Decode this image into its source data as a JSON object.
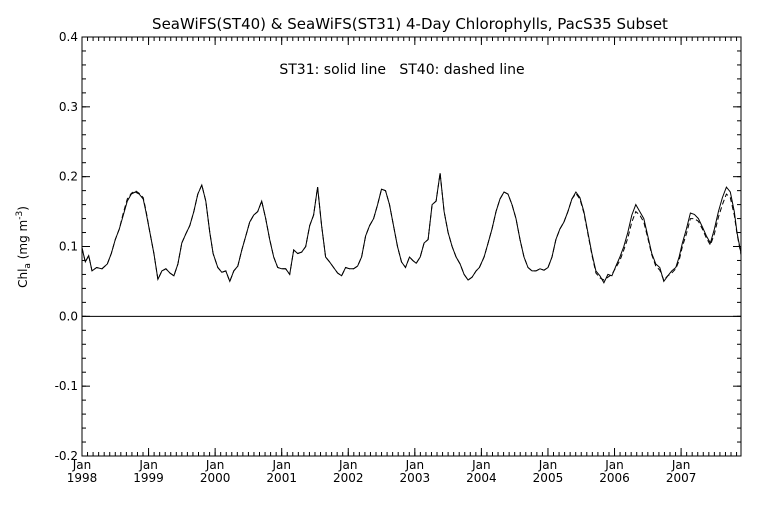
{
  "chart_data": {
    "type": "line",
    "title": "SeaWiFS(ST40) & SeaWiFS(ST31) 4-Day Chlorophylls, PacS35 Subset",
    "annotation": "ST31: solid line   ST40: dashed line",
    "ylabel": {
      "base": "Chl",
      "sub": "a",
      "units_open": " (mg m",
      "units_sup": "-3",
      "units_close": ")"
    },
    "xlim": [
      1998.0,
      2007.9
    ],
    "ylim": [
      -0.2,
      0.4
    ],
    "yticks": [
      -0.2,
      -0.1,
      0.0,
      0.1,
      0.2,
      0.3,
      0.4
    ],
    "ytick_labels": [
      "-0.2",
      "-0.1",
      "0.0",
      "0.1",
      "0.2",
      "0.3",
      "0.4"
    ],
    "xticks": [
      {
        "x": 1998,
        "month": "Jan",
        "year": "1998"
      },
      {
        "x": 1999,
        "month": "Jan",
        "year": "1999"
      },
      {
        "x": 2000,
        "month": "Jan",
        "year": "2000"
      },
      {
        "x": 2001,
        "month": "Jan",
        "year": "2001"
      },
      {
        "x": 2002,
        "month": "Jan",
        "year": "2002"
      },
      {
        "x": 2003,
        "month": "Jan",
        "year": "2003"
      },
      {
        "x": 2004,
        "month": "Jan",
        "year": "2004"
      },
      {
        "x": 2005,
        "month": "Jan",
        "year": "2005"
      },
      {
        "x": 2006,
        "month": "Jan",
        "year": "2006"
      },
      {
        "x": 2007,
        "month": "Jan",
        "year": "2007"
      }
    ],
    "reference_line": 0.0,
    "series": [
      {
        "name": "ST31",
        "style": "solid",
        "x": [
          1998.0,
          1998.05,
          1998.1,
          1998.15,
          1998.22,
          1998.3,
          1998.38,
          1998.44,
          1998.5,
          1998.56,
          1998.62,
          1998.68,
          1998.74,
          1998.8,
          1998.86,
          1998.92,
          1998.96,
          1999.02,
          1999.08,
          1999.14,
          1999.2,
          1999.26,
          1999.32,
          1999.38,
          1999.44,
          1999.5,
          1999.56,
          1999.62,
          1999.68,
          1999.74,
          1999.8,
          1999.86,
          1999.92,
          1999.97,
          2000.04,
          2000.1,
          2000.16,
          2000.22,
          2000.28,
          2000.34,
          2000.4,
          2000.46,
          2000.52,
          2000.58,
          2000.64,
          2000.7,
          2000.76,
          2000.82,
          2000.88,
          2000.94,
          2001.0,
          2001.06,
          2001.12,
          2001.18,
          2001.24,
          2001.3,
          2001.36,
          2001.42,
          2001.48,
          2001.54,
          2001.6,
          2001.66,
          2001.72,
          2001.78,
          2001.84,
          2001.9,
          2001.96,
          2002.02,
          2002.08,
          2002.14,
          2002.2,
          2002.26,
          2002.32,
          2002.38,
          2002.44,
          2002.5,
          2002.56,
          2002.62,
          2002.68,
          2002.74,
          2002.8,
          2002.86,
          2002.92,
          2002.97,
          2003.02,
          2003.08,
          2003.14,
          2003.2,
          2003.26,
          2003.32,
          2003.38,
          2003.44,
          2003.5,
          2003.56,
          2003.62,
          2003.68,
          2003.74,
          2003.8,
          2003.86,
          2003.92,
          2003.97,
          2004.04,
          2004.1,
          2004.16,
          2004.22,
          2004.28,
          2004.34,
          2004.4,
          2004.46,
          2004.52,
          2004.58,
          2004.64,
          2004.7,
          2004.76,
          2004.82,
          2004.88,
          2004.94,
          2005.0,
          2005.06,
          2005.12,
          2005.18,
          2005.24,
          2005.3,
          2005.36,
          2005.42,
          2005.48,
          2005.54,
          2005.6,
          2005.66,
          2005.72,
          2005.78,
          2005.84,
          2005.9,
          2005.96,
          2006.02,
          2006.08,
          2006.14,
          2006.2,
          2006.26,
          2006.32,
          2006.38,
          2006.44,
          2006.5,
          2006.56,
          2006.62,
          2006.68,
          2006.74,
          2006.8,
          2006.86,
          2006.92,
          2006.97,
          2007.02,
          2007.08,
          2007.14,
          2007.2,
          2007.26,
          2007.32,
          2007.38,
          2007.44,
          2007.5,
          2007.56,
          2007.62,
          2007.68,
          2007.74,
          2007.8,
          2007.84,
          2007.88,
          2007.9
        ],
        "y": [
          0.098,
          0.078,
          0.087,
          0.065,
          0.07,
          0.068,
          0.075,
          0.09,
          0.11,
          0.125,
          0.145,
          0.165,
          0.175,
          0.178,
          0.175,
          0.168,
          0.15,
          0.12,
          0.09,
          0.053,
          0.065,
          0.068,
          0.062,
          0.058,
          0.075,
          0.105,
          0.118,
          0.13,
          0.15,
          0.175,
          0.188,
          0.165,
          0.12,
          0.09,
          0.07,
          0.063,
          0.065,
          0.05,
          0.065,
          0.072,
          0.095,
          0.115,
          0.135,
          0.145,
          0.15,
          0.165,
          0.14,
          0.11,
          0.085,
          0.07,
          0.068,
          0.068,
          0.06,
          0.095,
          0.09,
          0.092,
          0.1,
          0.13,
          0.145,
          0.185,
          0.13,
          0.085,
          0.078,
          0.07,
          0.062,
          0.058,
          0.07,
          0.068,
          0.068,
          0.072,
          0.085,
          0.115,
          0.13,
          0.14,
          0.16,
          0.182,
          0.18,
          0.16,
          0.13,
          0.1,
          0.078,
          0.07,
          0.085,
          0.08,
          0.076,
          0.085,
          0.105,
          0.11,
          0.16,
          0.165,
          0.205,
          0.15,
          0.12,
          0.1,
          0.085,
          0.075,
          0.06,
          0.052,
          0.056,
          0.065,
          0.07,
          0.085,
          0.105,
          0.125,
          0.15,
          0.168,
          0.178,
          0.175,
          0.16,
          0.14,
          0.11,
          0.085,
          0.07,
          0.065,
          0.065,
          0.068,
          0.066,
          0.07,
          0.085,
          0.11,
          0.125,
          0.135,
          0.15,
          0.168,
          0.178,
          0.17,
          0.15,
          0.12,
          0.09,
          0.065,
          0.058,
          0.048,
          0.06,
          0.058,
          0.072,
          0.085,
          0.1,
          0.12,
          0.145,
          0.16,
          0.15,
          0.14,
          0.115,
          0.09,
          0.075,
          0.07,
          0.05,
          0.058,
          0.065,
          0.07,
          0.085,
          0.105,
          0.125,
          0.148,
          0.146,
          0.14,
          0.128,
          0.115,
          0.105,
          0.125,
          0.15,
          0.17,
          0.185,
          0.178,
          0.15,
          0.12,
          0.1,
          0.09
        ],
        "color": "#000000"
      },
      {
        "name": "ST40",
        "style": "dashed",
        "x": [
          1998.0,
          1998.05,
          1998.1,
          1998.15,
          1998.22,
          1998.3,
          1998.38,
          1998.44,
          1998.5,
          1998.56,
          1998.62,
          1998.68,
          1998.74,
          1998.8,
          1998.86,
          1998.92,
          1998.96,
          1999.02,
          1999.08,
          1999.14,
          1999.2,
          1999.26,
          1999.32,
          1999.38,
          1999.44,
          1999.5,
          1999.56,
          1999.62,
          1999.68,
          1999.74,
          1999.8,
          1999.86,
          1999.92,
          1999.97,
          2000.04,
          2000.1,
          2000.16,
          2000.22,
          2000.28,
          2000.34,
          2000.4,
          2000.46,
          2000.52,
          2000.58,
          2000.64,
          2000.7,
          2000.76,
          2000.82,
          2000.88,
          2000.94,
          2001.0,
          2001.06,
          2001.12,
          2001.18,
          2001.24,
          2001.3,
          2001.36,
          2001.42,
          2001.48,
          2001.54,
          2001.6,
          2001.66,
          2001.72,
          2001.78,
          2001.84,
          2001.9,
          2001.96,
          2002.02,
          2002.08,
          2002.14,
          2002.2,
          2002.26,
          2002.32,
          2002.38,
          2002.44,
          2002.5,
          2002.56,
          2002.62,
          2002.68,
          2002.74,
          2002.8,
          2002.86,
          2002.92,
          2002.97,
          2003.02,
          2003.08,
          2003.14,
          2003.2,
          2003.26,
          2003.32,
          2003.38,
          2003.44,
          2003.5,
          2003.56,
          2003.62,
          2003.68,
          2003.74,
          2003.8,
          2003.86,
          2003.92,
          2003.97,
          2004.04,
          2004.1,
          2004.16,
          2004.22,
          2004.28,
          2004.34,
          2004.4,
          2004.46,
          2004.52,
          2004.58,
          2004.64,
          2004.7,
          2004.76,
          2004.82,
          2004.88,
          2004.94,
          2005.0,
          2005.06,
          2005.12,
          2005.18,
          2005.24,
          2005.3,
          2005.36,
          2005.42,
          2005.48,
          2005.54,
          2005.6,
          2005.66,
          2005.72,
          2005.78,
          2005.84,
          2005.9,
          2005.96,
          2006.02,
          2006.08,
          2006.14,
          2006.2,
          2006.26,
          2006.32,
          2006.38,
          2006.44,
          2006.5,
          2006.56,
          2006.62,
          2006.68,
          2006.74,
          2006.8,
          2006.86,
          2006.92,
          2006.97,
          2007.02,
          2007.08,
          2007.14,
          2007.2,
          2007.26,
          2007.32,
          2007.38,
          2007.44,
          2007.5,
          2007.56,
          2007.62,
          2007.68,
          2007.74,
          2007.8,
          2007.84,
          2007.88,
          2007.9
        ],
        "y": [
          0.098,
          0.078,
          0.087,
          0.065,
          0.07,
          0.068,
          0.075,
          0.09,
          0.11,
          0.125,
          0.148,
          0.168,
          0.176,
          0.18,
          0.176,
          0.17,
          0.152,
          0.12,
          0.09,
          0.053,
          0.065,
          0.068,
          0.062,
          0.058,
          0.075,
          0.105,
          0.118,
          0.13,
          0.15,
          0.175,
          0.188,
          0.165,
          0.12,
          0.09,
          0.07,
          0.063,
          0.065,
          0.05,
          0.065,
          0.072,
          0.095,
          0.115,
          0.135,
          0.145,
          0.15,
          0.165,
          0.14,
          0.11,
          0.085,
          0.07,
          0.068,
          0.068,
          0.06,
          0.095,
          0.09,
          0.092,
          0.1,
          0.13,
          0.145,
          0.185,
          0.13,
          0.085,
          0.078,
          0.07,
          0.062,
          0.058,
          0.07,
          0.068,
          0.068,
          0.072,
          0.085,
          0.115,
          0.13,
          0.14,
          0.16,
          0.182,
          0.18,
          0.16,
          0.13,
          0.1,
          0.078,
          0.07,
          0.085,
          0.08,
          0.076,
          0.085,
          0.105,
          0.11,
          0.16,
          0.165,
          0.205,
          0.15,
          0.12,
          0.1,
          0.085,
          0.075,
          0.06,
          0.052,
          0.056,
          0.065,
          0.07,
          0.085,
          0.105,
          0.125,
          0.15,
          0.168,
          0.178,
          0.175,
          0.16,
          0.14,
          0.11,
          0.085,
          0.07,
          0.065,
          0.065,
          0.068,
          0.066,
          0.07,
          0.085,
          0.11,
          0.125,
          0.135,
          0.15,
          0.168,
          0.176,
          0.168,
          0.148,
          0.118,
          0.088,
          0.062,
          0.055,
          0.052,
          0.056,
          0.06,
          0.07,
          0.08,
          0.095,
          0.112,
          0.135,
          0.15,
          0.145,
          0.135,
          0.112,
          0.088,
          0.072,
          0.066,
          0.052,
          0.058,
          0.062,
          0.068,
          0.08,
          0.1,
          0.118,
          0.14,
          0.14,
          0.136,
          0.125,
          0.112,
          0.102,
          0.118,
          0.142,
          0.16,
          0.175,
          0.17,
          0.145,
          0.118,
          0.098,
          0.088
        ],
        "color": "#000000"
      }
    ]
  }
}
